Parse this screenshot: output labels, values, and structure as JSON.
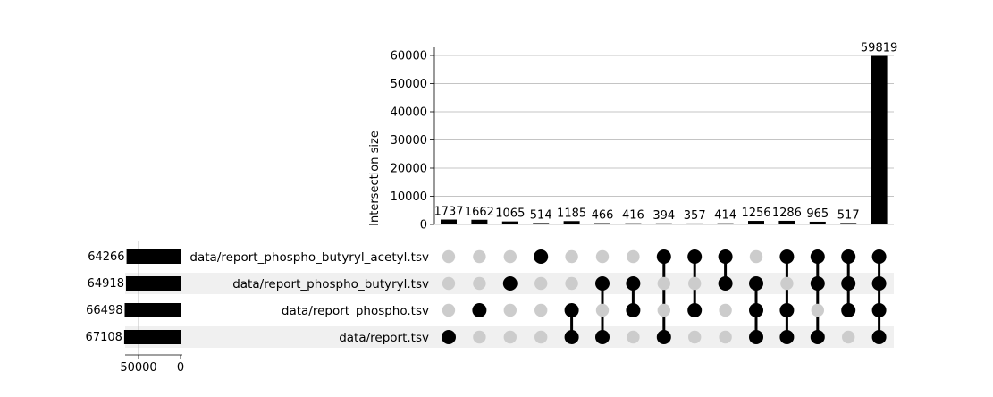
{
  "chart_data": {
    "type": "upset",
    "sets": [
      {
        "name": "data/report_phospho_butyryl_acetyl.tsv",
        "size": 64266
      },
      {
        "name": "data/report_phospho_butyryl.tsv",
        "size": 64918
      },
      {
        "name": "data/report_phospho.tsv",
        "size": 66498
      },
      {
        "name": "data/report.tsv",
        "size": 67108
      }
    ],
    "intersections": [
      {
        "value": 1737,
        "members": [
          3
        ]
      },
      {
        "value": 1662,
        "members": [
          2
        ]
      },
      {
        "value": 1065,
        "members": [
          1
        ]
      },
      {
        "value": 514,
        "members": [
          0
        ]
      },
      {
        "value": 1185,
        "members": [
          2,
          3
        ]
      },
      {
        "value": 466,
        "members": [
          1,
          3
        ]
      },
      {
        "value": 416,
        "members": [
          1,
          2
        ]
      },
      {
        "value": 394,
        "members": [
          0,
          3
        ]
      },
      {
        "value": 357,
        "members": [
          0,
          2
        ]
      },
      {
        "value": 414,
        "members": [
          0,
          1
        ]
      },
      {
        "value": 1256,
        "members": [
          1,
          2,
          3
        ]
      },
      {
        "value": 1286,
        "members": [
          0,
          2,
          3
        ]
      },
      {
        "value": 965,
        "members": [
          0,
          1,
          3
        ]
      },
      {
        "value": 517,
        "members": [
          0,
          1,
          2
        ]
      },
      {
        "value": 59819,
        "members": [
          0,
          1,
          2,
          3
        ]
      }
    ],
    "intersection_axis": {
      "label": "Intersection size",
      "ticks": [
        0,
        10000,
        20000,
        30000,
        40000,
        50000,
        60000
      ],
      "range": [
        0,
        62000
      ],
      "grid": true
    },
    "set_size_axis": {
      "ticks": [
        50000,
        0
      ],
      "range": [
        0,
        70000
      ],
      "direction": "reversed"
    },
    "colors": {
      "bar": "#000000",
      "dot_active": "#000000",
      "dot_inactive": "#cccccc",
      "row_shade": "#f0f0f0",
      "grid": "#b0b0b0"
    }
  }
}
